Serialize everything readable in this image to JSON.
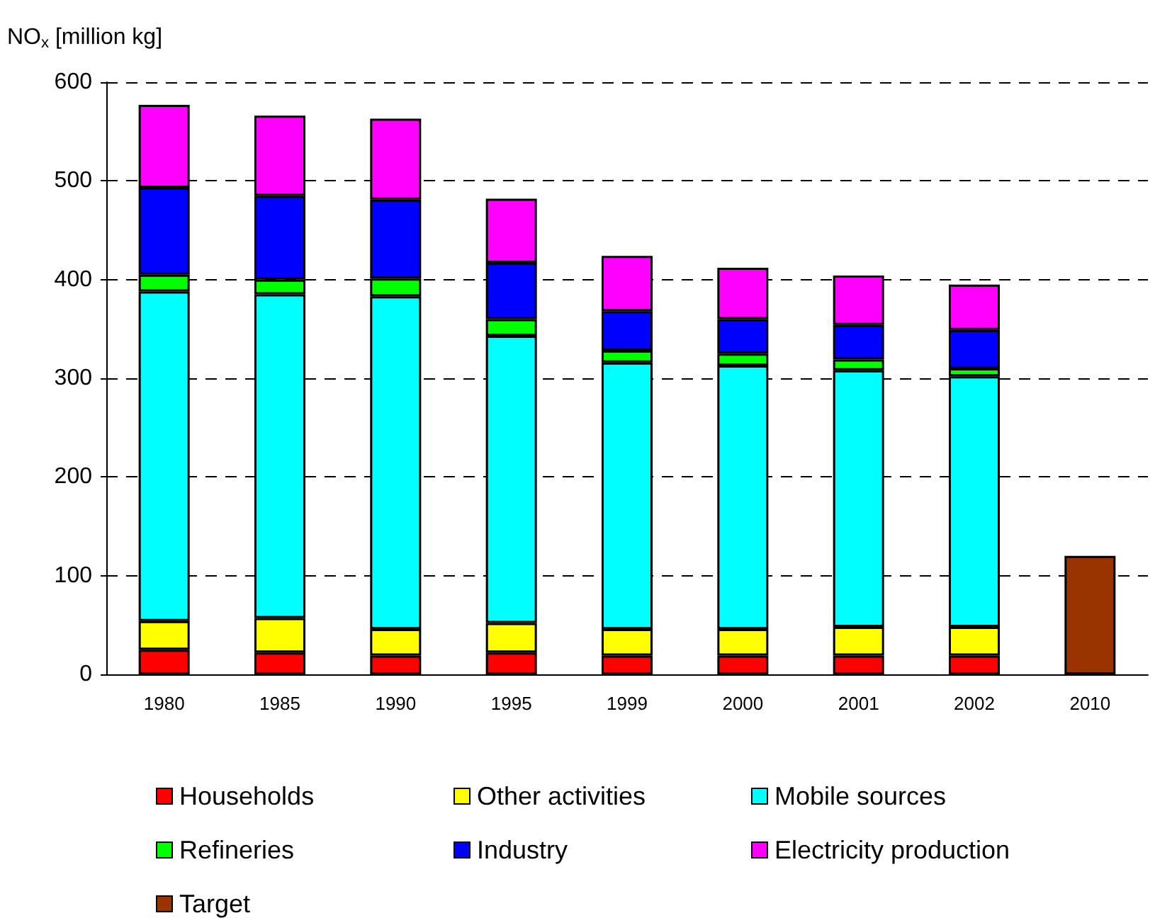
{
  "chart_data": {
    "type": "bar",
    "stacked": true,
    "ylabel": "NO$_{x}$ [million kg]",
    "categories": [
      "1980",
      "1985",
      "1990",
      "1995",
      "1999",
      "2000",
      "2001",
      "2002",
      "2010"
    ],
    "series": [
      {
        "name": "Households",
        "color": "#ff0000",
        "values": [
          25,
          22,
          19,
          22,
          19,
          19,
          19,
          19,
          null
        ]
      },
      {
        "name": "Other activities",
        "color": "#ffff00",
        "values": [
          29,
          35,
          27,
          30,
          27,
          27,
          29,
          29,
          null
        ]
      },
      {
        "name": "Mobile sources",
        "color": "#00ffff",
        "values": [
          334,
          328,
          337,
          291,
          270,
          267,
          260,
          254,
          null
        ]
      },
      {
        "name": "Refineries",
        "color": "#00ff00",
        "values": [
          17,
          15,
          18,
          17,
          12,
          12,
          11,
          8,
          null
        ]
      },
      {
        "name": "Industry",
        "color": "#0000ff",
        "values": [
          88,
          85,
          80,
          57,
          40,
          35,
          35,
          39,
          null
        ]
      },
      {
        "name": "Electricity production",
        "color": "#ff00ff",
        "values": [
          84,
          81,
          82,
          65,
          56,
          52,
          50,
          46,
          null
        ]
      },
      {
        "name": "Target",
        "color": "#993300",
        "values": [
          null,
          null,
          null,
          null,
          null,
          null,
          null,
          null,
          120
        ]
      }
    ],
    "ylim": [
      0,
      600
    ],
    "yticks": [
      0,
      100,
      200,
      300,
      400,
      500,
      600
    ],
    "grid": "y",
    "legend": "bottom"
  }
}
